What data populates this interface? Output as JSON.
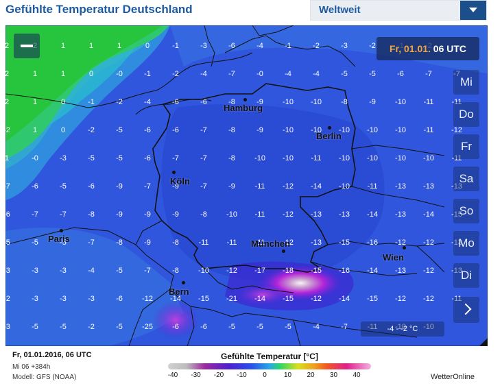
{
  "header": {
    "title": "Gefühlte Temperatur Deutschland",
    "region_label": "Weltweit"
  },
  "map": {
    "zoom_out_icon": "minus-icon",
    "date_label": "Fr, 01.01.",
    "time_label": "06 UTC",
    "days": [
      "Mi",
      "Do",
      "Fr",
      "Sa",
      "So",
      "Mo",
      "Di"
    ],
    "next_icon": "chevron-right-icon",
    "readout": "-4  -   -2  °C",
    "cities": [
      {
        "name": "Hamburg"
      },
      {
        "name": "Berlin"
      },
      {
        "name": "Köln"
      },
      {
        "name": "Paris"
      },
      {
        "name": "München"
      },
      {
        "name": "Wien"
      },
      {
        "name": "Bern"
      }
    ],
    "grid_rows": [
      [
        "2",
        "2",
        "1",
        "1",
        "1",
        "0",
        "-1",
        "-3",
        "-6",
        "-4",
        "-1",
        "-2",
        "-3",
        "-2",
        "-1",
        "-2"
      ],
      [
        "2",
        "1",
        "1",
        "0",
        "-0",
        "-1",
        "-2",
        "-4",
        "-7",
        "-0",
        "-4",
        "-4",
        "-5",
        "-5",
        "-6",
        "-7",
        "-7"
      ],
      [
        "2",
        "1",
        "0",
        "-1",
        "-2",
        "-4",
        "-6",
        "-6",
        "-8",
        "-9",
        "-10",
        "-10",
        "-8",
        "-9",
        "-10",
        "-11",
        "-11"
      ],
      [
        "-2",
        "1",
        "0",
        "-2",
        "-5",
        "-6",
        "-6",
        "-7",
        "-8",
        "-9",
        "-10",
        "-10",
        "-10",
        "-10",
        "-10",
        "-11",
        "-12"
      ],
      [
        "1",
        "-0",
        "-3",
        "-5",
        "-5",
        "-6",
        "-7",
        "-7",
        "-8",
        "-10",
        "-10",
        "-11",
        "-10",
        "-10",
        "-10",
        "-10",
        "-11"
      ],
      [
        "-7",
        "-6",
        "-5",
        "-6",
        "-9",
        "-7",
        "-9",
        "-7",
        "-9",
        "-11",
        "-12",
        "-14",
        "-10",
        "-11",
        "-13",
        "-13",
        "-13"
      ],
      [
        "-6",
        "-7",
        "-7",
        "-8",
        "-9",
        "-9",
        "-9",
        "-8",
        "-10",
        "-11",
        "-12",
        "-13",
        "-13",
        "-14",
        "-13",
        "-14",
        "-15"
      ],
      [
        "-5",
        "-5",
        "-5",
        "-7",
        "-8",
        "-9",
        "-8",
        "-11",
        "-11",
        "-11",
        "-12",
        "-13",
        "-15",
        "-16",
        "-12",
        "-12",
        "-13"
      ],
      [
        "-3",
        "-3",
        "-3",
        "-4",
        "-5",
        "-7",
        "-8",
        "-10",
        "-12",
        "-17",
        "-18",
        "-15",
        "-16",
        "-14",
        "-13",
        "-12",
        "-13"
      ],
      [
        "-2",
        "-3",
        "-3",
        "-3",
        "-6",
        "-12",
        "-14",
        "-15",
        "-21",
        "-14",
        "-15",
        "-12",
        "-14",
        "-15",
        "-12",
        "-12",
        "-11"
      ],
      [
        "-3",
        "-5",
        "-5",
        "-2",
        "-5",
        "-25",
        "-6",
        "-6",
        "-5",
        "-5",
        "-5",
        "-4",
        "-7",
        "-11",
        "-10",
        "-10"
      ]
    ]
  },
  "footer": {
    "date": "Fr, 01.01.2016, 06 UTC",
    "run": "Mi 06 +384h",
    "model": "Modell: GFS (NOAA)",
    "legend_title": "Gefühlte Temperatur [°C]",
    "legend_ticks": [
      "-40",
      "-30",
      "-20",
      "-10",
      "0",
      "10",
      "20",
      "30",
      "40"
    ],
    "brand": "WetterOnline"
  },
  "colors": {
    "title_blue": "#1e5aa0",
    "map_blue": "#2a55d8",
    "date_orange": "#f2a640"
  }
}
